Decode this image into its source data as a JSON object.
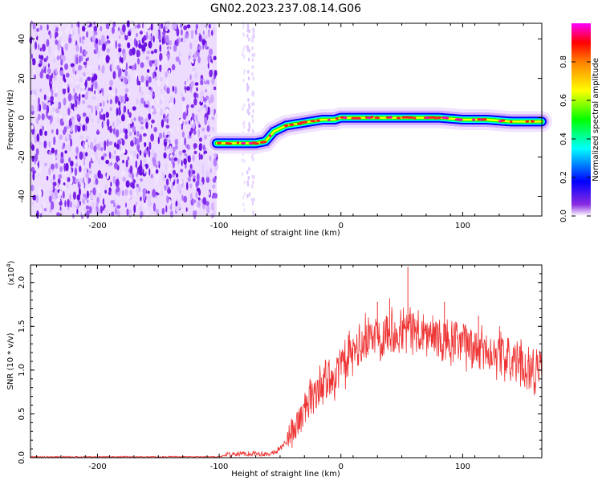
{
  "title": "GN02.2023.237.08.14.G06",
  "chart_data": [
    {
      "type": "heatmap",
      "title": "GN02.2023.237.08.14.G06",
      "xlabel": "Height of straight line (km)",
      "ylabel": "Frequency (Hz)",
      "xlim": [
        -255,
        165
      ],
      "ylim": [
        -50,
        48
      ],
      "xticks": [
        -200,
        -100,
        0,
        100
      ],
      "yticks": [
        -40,
        -20,
        0,
        20,
        40
      ],
      "colorbar": {
        "label": "Normalized spectral amplitude",
        "range": [
          0,
          1
        ],
        "ticks": [
          "0.0",
          "0.2",
          "0.4",
          "0.6",
          "0.8"
        ],
        "colors": [
          "#ffffff",
          "#8a2be2",
          "#0000ff",
          "#00ffff",
          "#00ff00",
          "#ffff00",
          "#ff8000",
          "#ff0000",
          "#ff00ff"
        ]
      },
      "ridge": {
        "x": [
          -102,
          -90,
          -80,
          -70,
          -62,
          -55,
          -45,
          -35,
          -25,
          -15,
          -5,
          0,
          20,
          40,
          60,
          80,
          100,
          120,
          140,
          165
        ],
        "y": [
          -13,
          -13,
          -13,
          -13,
          -12,
          -7,
          -4,
          -3,
          -2,
          -1,
          -1,
          0,
          0,
          0,
          0,
          0,
          -1,
          -1,
          -2,
          -2
        ]
      },
      "noise_region_x": [
        -255,
        -102
      ]
    },
    {
      "type": "line",
      "xlabel": "Height of straight line (km)",
      "ylabel": "SNR (10 * v/v)",
      "y_multiplier": "(x10",
      "y_multiplier_exp": "4",
      "y_multiplier_close": ")",
      "xlim": [
        -255,
        165
      ],
      "ylim": [
        0,
        2.2
      ],
      "xticks": [
        -200,
        -100,
        0,
        100
      ],
      "yticks": [
        "0.0",
        "0.5",
        "1.0",
        "1.5",
        "2.0"
      ],
      "line_color": "#ee3333",
      "trend": {
        "x": [
          -255,
          -100,
          -90,
          -70,
          -60,
          -50,
          -40,
          -30,
          -20,
          -10,
          0,
          10,
          20,
          30,
          40,
          50,
          60,
          70,
          80,
          90,
          100,
          110,
          120,
          130,
          140,
          150,
          160,
          165
        ],
        "y": [
          0.01,
          0.01,
          0.04,
          0.05,
          0.04,
          0.1,
          0.28,
          0.55,
          0.78,
          0.9,
          1.02,
          1.18,
          1.33,
          1.42,
          1.45,
          1.48,
          1.45,
          1.4,
          1.35,
          1.3,
          1.3,
          1.25,
          1.22,
          1.2,
          1.1,
          1.05,
          1.0,
          0.95
        ]
      },
      "peaks": [
        {
          "x": 55,
          "y": 2.18
        },
        {
          "x": 85,
          "y": 1.78
        },
        {
          "x": 113,
          "y": 1.62
        },
        {
          "x": 30,
          "y": 1.78
        },
        {
          "x": 40,
          "y": 1.82
        }
      ]
    }
  ]
}
